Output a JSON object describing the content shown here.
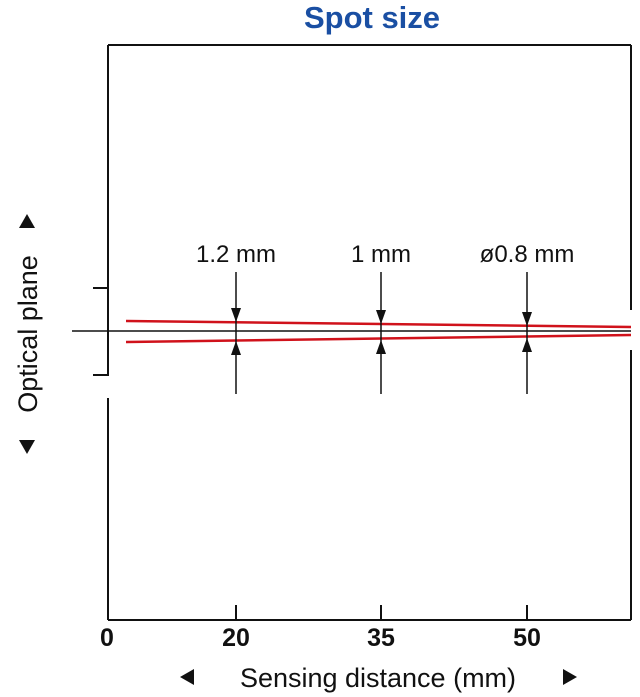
{
  "title": "Spot size",
  "x_axis_label": "Sensing distance (mm)",
  "y_axis_label": "Optical plane",
  "x_ticks": [
    "0",
    "20",
    "35",
    "50"
  ],
  "spot_labels": [
    {
      "distance_mm": 20,
      "text": "1.2 mm"
    },
    {
      "distance_mm": 35,
      "text": "1 mm"
    },
    {
      "distance_mm": 50,
      "text": "ø0.8 mm"
    }
  ],
  "colors": {
    "title": "#1a4fa3",
    "beam": "#d0121b",
    "ink": "#111111"
  },
  "icons": [
    "arrow-left-icon",
    "arrow-right-icon",
    "arrow-up-icon",
    "arrow-down-icon"
  ]
}
